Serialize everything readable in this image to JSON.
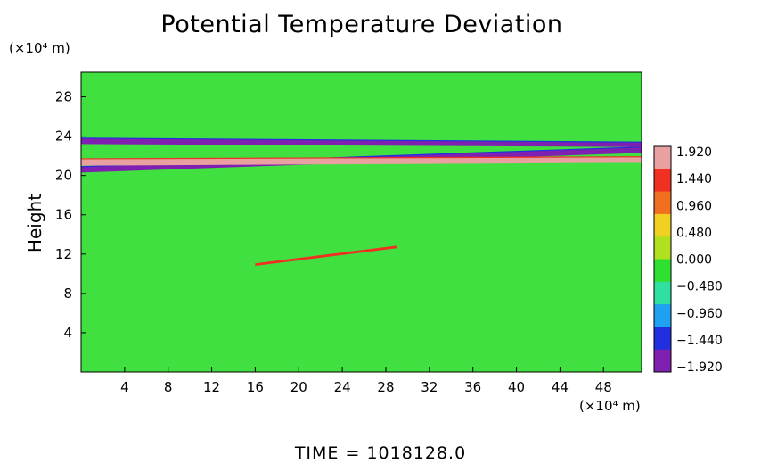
{
  "chart_data": {
    "type": "heatmap",
    "title": "Potential Temperature Deviation",
    "ylabel": "Height",
    "xunit": "(×10⁴ m)",
    "yunit": "(×10⁴ m)",
    "xlim": [
      0,
      51.5
    ],
    "ylim": [
      0,
      30.5
    ],
    "xticks": [
      "4",
      "8",
      "12",
      "16",
      "20",
      "24",
      "28",
      "32",
      "36",
      "40",
      "44",
      "48"
    ],
    "yticks": [
      "4",
      "8",
      "12",
      "16",
      "20",
      "24",
      "28"
    ],
    "colorbar": {
      "range": [
        -1.92,
        1.92
      ],
      "labels": [
        "1.920",
        "1.440",
        "0.960",
        "0.480",
        "0.000",
        "−0.480",
        "−0.960",
        "−1.440",
        "−1.920"
      ],
      "colors": [
        "#e8a0a0",
        "#f03020",
        "#f07020",
        "#f0d020",
        "#b0e020",
        "#30e030",
        "#30e0a0",
        "#20a0f0",
        "#2030e0",
        "#8020b0"
      ]
    },
    "background_color": "#3fe03f",
    "bands": [
      {
        "name": "lower stratosphere dark band",
        "value": -1.92,
        "x": [
          0,
          51.5
        ],
        "y_start": [
          20.3,
          22.3
        ],
        "y_end": [
          20.9,
          22.9
        ]
      },
      {
        "name": "pink warm band",
        "value": 1.92,
        "x": [
          0,
          51.5
        ],
        "y_start": [
          21.0,
          21.3
        ],
        "y_end": [
          21.7,
          21.9
        ]
      },
      {
        "name": "upper dark band",
        "value": -1.92,
        "x": [
          0,
          51.5
        ],
        "y_start": [
          23.2,
          22.9
        ],
        "y_end": [
          23.8,
          23.4
        ]
      },
      {
        "name": "mid tropospheric warm streak",
        "value": 1.44,
        "x": [
          16,
          29
        ],
        "y_start": [
          10.8,
          12.6
        ],
        "y_end": [
          11.0,
          12.8
        ]
      }
    ]
  },
  "footer": {
    "time_label": "TIME",
    "time_value": "1018128.0"
  }
}
